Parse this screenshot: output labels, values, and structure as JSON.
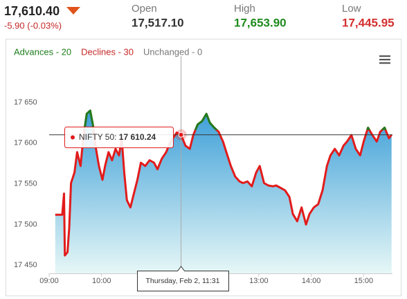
{
  "header": {
    "price": "17,610.40",
    "change": "-5.90 (-0.03%)",
    "stats": [
      {
        "label": "Open",
        "value": "17,517.10",
        "color": "#333333"
      },
      {
        "label": "High",
        "value": "17,653.90",
        "color": "#1e8a1e"
      },
      {
        "label": "Low",
        "value": "17,445.95",
        "color": "#d32f2f"
      }
    ]
  },
  "chart_data": {
    "type": "area",
    "breadth": [
      {
        "label": "Advances - 20",
        "color": "#1e7d1e"
      },
      {
        "label": "Declines - 30",
        "color": "#c62828"
      },
      {
        "label": "Unchanged - 0",
        "color": "#777777"
      }
    ],
    "x": [
      "09:07",
      "09:15",
      "09:17",
      "09:18",
      "09:21",
      "09:23",
      "09:25",
      "09:29",
      "09:32",
      "09:36",
      "09:39",
      "09:43",
      "09:47",
      "09:50",
      "09:53",
      "09:57",
      "10:01",
      "10:04",
      "10:08",
      "10:12",
      "10:16",
      "10:20",
      "10:23",
      "10:26",
      "10:29",
      "10:33",
      "10:37",
      "10:41",
      "10:45",
      "10:50",
      "10:55",
      "11:00",
      "11:04",
      "11:09",
      "11:14",
      "11:19",
      "11:23",
      "11:26",
      "11:31",
      "11:36",
      "11:41",
      "11:45",
      "11:50",
      "11:55",
      "12:00",
      "12:04",
      "12:09",
      "12:14",
      "12:19",
      "12:24",
      "12:28",
      "12:33",
      "12:38",
      "12:42",
      "12:47",
      "12:52",
      "12:57",
      "13:01",
      "13:06",
      "13:11",
      "13:16",
      "13:20",
      "13:25",
      "13:30",
      "13:35",
      "13:39",
      "13:44",
      "13:49",
      "13:54",
      "13:58",
      "14:03",
      "14:08",
      "14:13",
      "14:18",
      "14:22",
      "14:27",
      "14:32",
      "14:37",
      "14:41",
      "14:46",
      "14:51",
      "14:56",
      "15:00",
      "15:05",
      "15:10",
      "15:15",
      "15:19",
      "15:24",
      "15:29",
      "15:32"
    ],
    "series": [
      {
        "name": "NIFTY 50",
        "color": "#e21b1b",
        "above_color": "#1e7d1e",
        "values": [
          17512,
          17512,
          17538,
          17462,
          17466,
          17496,
          17551,
          17564,
          17589,
          17572,
          17606,
          17636,
          17640,
          17623,
          17597,
          17572,
          17555,
          17572,
          17589,
          17579,
          17593,
          17585,
          17606,
          17564,
          17530,
          17521,
          17538,
          17555,
          17576,
          17572,
          17579,
          17576,
          17568,
          17581,
          17589,
          17602,
          17608,
          17613,
          17610.24,
          17597,
          17593,
          17610,
          17623,
          17627,
          17636,
          17625,
          17619,
          17614,
          17602,
          17585,
          17572,
          17559,
          17553,
          17551,
          17553,
          17547,
          17564,
          17572,
          17551,
          17548,
          17547,
          17548,
          17545,
          17542,
          17534,
          17513,
          17504,
          17521,
          17500,
          17513,
          17521,
          17525,
          17542,
          17572,
          17585,
          17593,
          17585,
          17597,
          17602,
          17610,
          17593,
          17585,
          17602,
          17619,
          17610,
          17602,
          17614,
          17619,
          17606,
          17610.4
        ]
      }
    ],
    "xlim": [
      "09:00",
      "15:33"
    ],
    "xticks": [
      "09:00",
      "10:00",
      "11:00",
      "12:00",
      "13:00",
      "14:00",
      "15:00"
    ],
    "ylim": [
      17440,
      17690
    ],
    "yticks": [
      {
        "value": 17450,
        "label": "17 450"
      },
      {
        "value": 17500,
        "label": "17 500"
      },
      {
        "value": 17550,
        "label": "17 550"
      },
      {
        "value": 17600,
        "label": "17 600"
      },
      {
        "value": 17650,
        "label": "17 650"
      }
    ],
    "grid": false,
    "tooltip": {
      "x": "11:31",
      "value": 17610.24,
      "series_label": "NIFTY 50: ",
      "value_label": "17 610.24",
      "x_label": "Thursday, Feb 2, 11:31"
    }
  }
}
